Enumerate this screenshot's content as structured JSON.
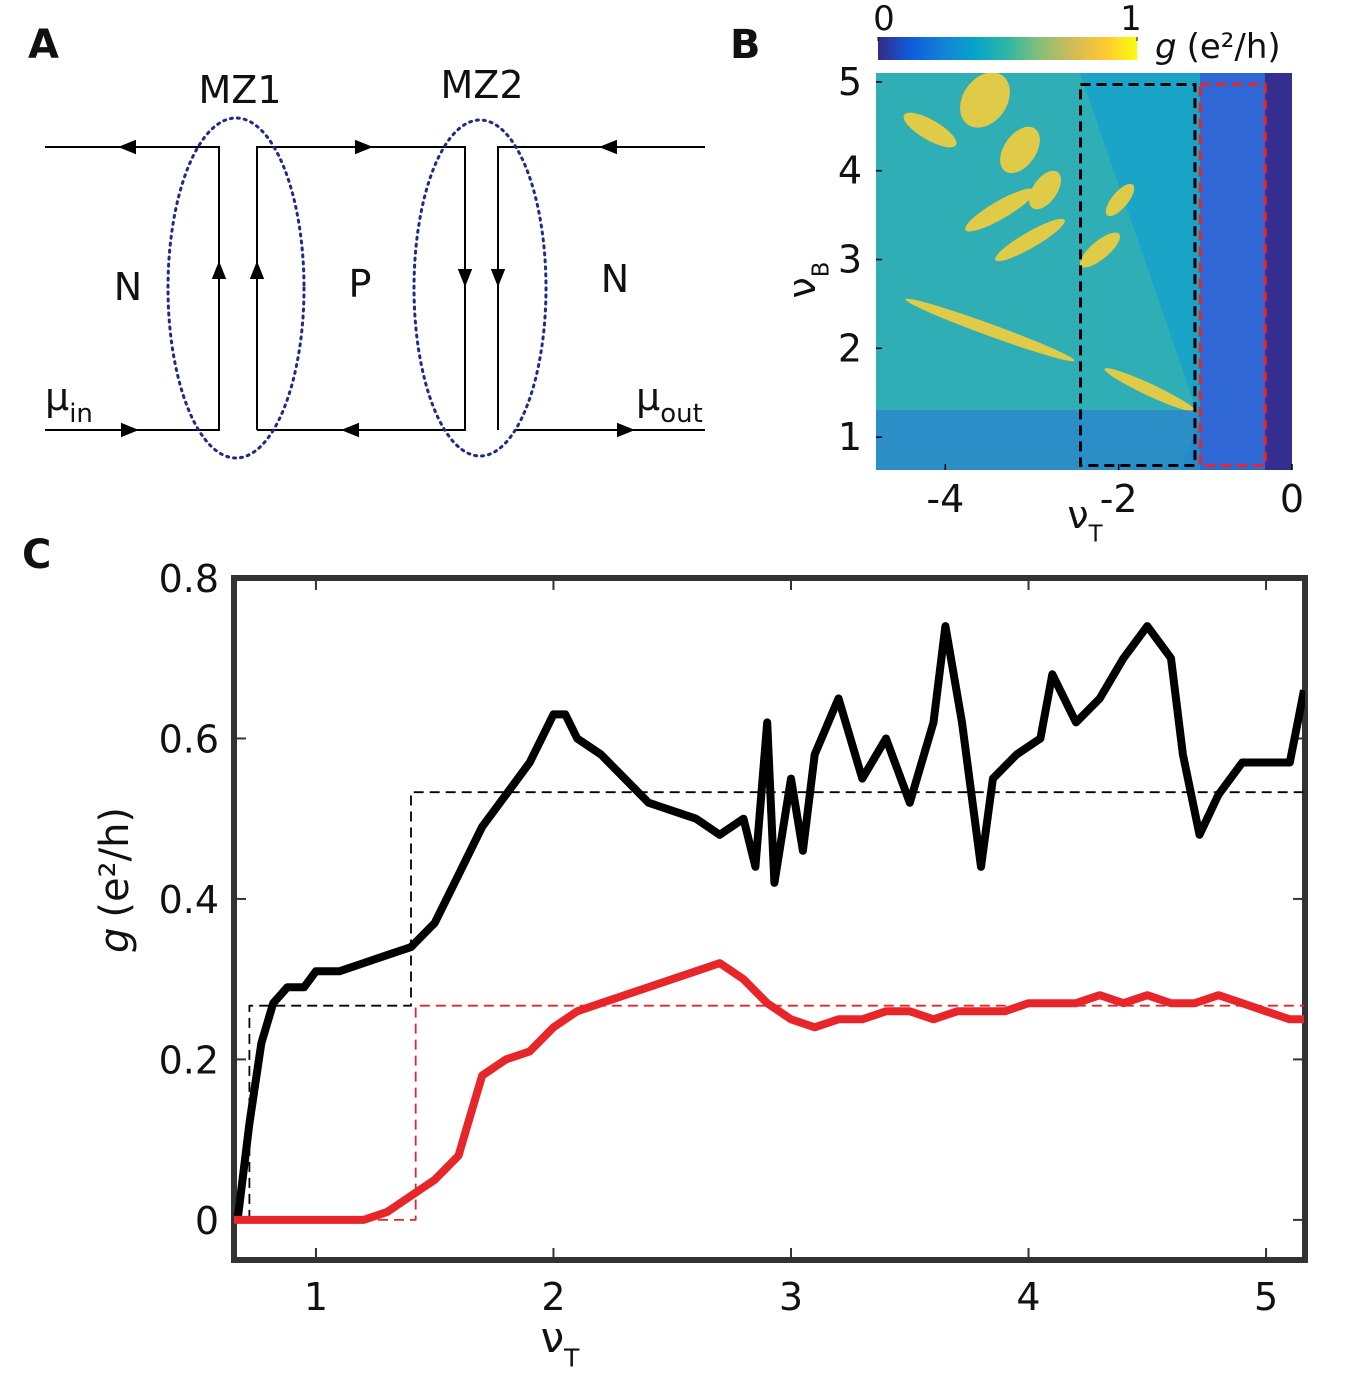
{
  "panel_a": {
    "label": "A",
    "mz": [
      "MZ1",
      "MZ2"
    ],
    "regions": [
      "N",
      "P",
      "N"
    ],
    "mu_in": [
      "μ",
      "in"
    ],
    "mu_out": [
      "μ",
      "out"
    ]
  },
  "chart_data": [
    {
      "type": "heatmap",
      "panel_label": "B",
      "xlim": [
        -4.8,
        0
      ],
      "xticks": [
        -4,
        -2,
        0
      ],
      "ylim": [
        0.63,
        5.1
      ],
      "yticks": [
        1,
        2,
        3,
        4,
        5
      ],
      "xlabel": [
        "ν",
        "T"
      ],
      "ylabel": [
        "ν",
        "B"
      ],
      "colorbar": {
        "lim": [
          0,
          1
        ],
        "ticks": [
          0,
          1
        ],
        "label": [
          "g",
          "(e²/h)"
        ],
        "colors": [
          "#352a87",
          "#0f5cdd",
          "#1481d6",
          "#06a4ca",
          "#2eb7a4",
          "#87bf77",
          "#d1bb59",
          "#fec832",
          "#f9fb0e"
        ]
      },
      "boxes": [
        {
          "color": "#000000",
          "x": [
            -2.44,
            -1.12
          ],
          "y": [
            0.68,
            4.97
          ]
        },
        {
          "color": "#e8262a",
          "x": [
            -1.06,
            -0.31
          ],
          "y": [
            0.68,
            4.97
          ]
        }
      ]
    },
    {
      "type": "line",
      "panel_label": "C",
      "xlim": [
        0.655,
        5.164
      ],
      "xticks": [
        1,
        2,
        3,
        4,
        5
      ],
      "ylim": [
        -0.05,
        0.8
      ],
      "yticks": [
        0,
        0.2,
        0.4,
        0.6,
        0.8
      ],
      "xlabel": [
        "ν",
        "T"
      ],
      "ylabel": [
        "g",
        "(e²/h)"
      ],
      "series": [
        {
          "color": "#000000",
          "style": "solid",
          "x": [
            0.67,
            0.72,
            0.77,
            0.82,
            0.88,
            0.95,
            1.0,
            1.1,
            1.2,
            1.3,
            1.4,
            1.5,
            1.6,
            1.7,
            1.8,
            1.9,
            2.0,
            2.05,
            2.1,
            2.2,
            2.3,
            2.4,
            2.5,
            2.6,
            2.7,
            2.8,
            2.85,
            2.9,
            2.93,
            3.0,
            3.05,
            3.1,
            3.2,
            3.3,
            3.4,
            3.5,
            3.6,
            3.65,
            3.72,
            3.8,
            3.85,
            3.95,
            4.05,
            4.1,
            4.2,
            4.3,
            4.4,
            4.5,
            4.6,
            4.65,
            4.72,
            4.8,
            4.9,
            5.0,
            5.1,
            5.16
          ],
          "values": [
            0,
            0.12,
            0.22,
            0.27,
            0.29,
            0.29,
            0.31,
            0.31,
            0.32,
            0.33,
            0.34,
            0.37,
            0.43,
            0.49,
            0.53,
            0.57,
            0.63,
            0.63,
            0.6,
            0.58,
            0.55,
            0.52,
            0.51,
            0.5,
            0.48,
            0.5,
            0.44,
            0.62,
            0.42,
            0.55,
            0.46,
            0.58,
            0.65,
            0.55,
            0.6,
            0.52,
            0.62,
            0.74,
            0.62,
            0.44,
            0.55,
            0.58,
            0.6,
            0.68,
            0.62,
            0.65,
            0.7,
            0.74,
            0.7,
            0.58,
            0.48,
            0.53,
            0.57,
            0.57,
            0.57,
            0.66
          ]
        },
        {
          "color": "#e8262a",
          "style": "solid",
          "x": [
            0.655,
            1.0,
            1.2,
            1.3,
            1.4,
            1.5,
            1.6,
            1.65,
            1.7,
            1.8,
            1.9,
            2.0,
            2.1,
            2.2,
            2.3,
            2.4,
            2.5,
            2.6,
            2.7,
            2.8,
            2.9,
            3.0,
            3.1,
            3.2,
            3.3,
            3.4,
            3.5,
            3.6,
            3.7,
            3.8,
            3.9,
            4.0,
            4.1,
            4.2,
            4.3,
            4.4,
            4.5,
            4.6,
            4.7,
            4.8,
            4.9,
            5.0,
            5.1,
            5.16
          ],
          "values": [
            0,
            0,
            0,
            0.01,
            0.03,
            0.05,
            0.08,
            0.13,
            0.18,
            0.2,
            0.21,
            0.24,
            0.26,
            0.27,
            0.28,
            0.29,
            0.3,
            0.31,
            0.32,
            0.3,
            0.27,
            0.25,
            0.24,
            0.25,
            0.25,
            0.26,
            0.26,
            0.25,
            0.26,
            0.26,
            0.26,
            0.27,
            0.27,
            0.27,
            0.28,
            0.27,
            0.28,
            0.27,
            0.27,
            0.28,
            0.27,
            0.26,
            0.25,
            0.25
          ]
        },
        {
          "color": "#000000",
          "style": "dashed",
          "x": [
            0.72,
            0.72,
            1.4,
            1.4,
            5.16
          ],
          "values": [
            0,
            0.267,
            0.267,
            0.533,
            0.533
          ]
        },
        {
          "color": "#e8262a",
          "style": "dashed",
          "x": [
            0.655,
            1.42,
            1.42,
            5.16
          ],
          "values": [
            0,
            0,
            0.267,
            0.267
          ]
        }
      ]
    }
  ]
}
